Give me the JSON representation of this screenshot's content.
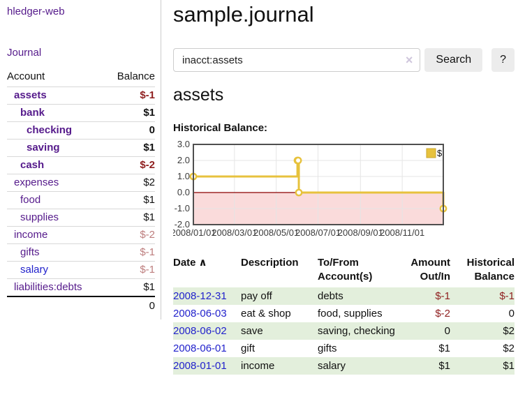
{
  "sidebar": {
    "app_title": "hledger-web",
    "journal_link": "Journal",
    "accounts_header": {
      "account": "Account",
      "balance": "Balance"
    },
    "accounts": [
      {
        "name": "assets",
        "balance": "$-1"
      },
      {
        "name": "bank",
        "balance": "$1"
      },
      {
        "name": "checking",
        "balance": "0"
      },
      {
        "name": "saving",
        "balance": "$1"
      },
      {
        "name": "cash",
        "balance": "$-2"
      },
      {
        "name": "expenses",
        "balance": "$2"
      },
      {
        "name": "food",
        "balance": "$1"
      },
      {
        "name": "supplies",
        "balance": "$1"
      },
      {
        "name": "income",
        "balance": "$-2"
      },
      {
        "name": "gifts",
        "balance": "$-1"
      },
      {
        "name": "salary",
        "balance": "$-1"
      },
      {
        "name": "liabilities:debts",
        "balance": "$1"
      }
    ],
    "total": "0"
  },
  "main": {
    "title": "sample.journal",
    "account_heading": "assets",
    "chart_title": "Historical Balance:"
  },
  "search": {
    "value": "inacct:assets",
    "clear_icon": "×",
    "button_label": "Search",
    "help_label": "?"
  },
  "chart_data": {
    "type": "line",
    "step": true,
    "title": "Historical Balance:",
    "xlabel": "",
    "ylabel": "",
    "x_range": [
      "2008-01-01",
      "2008-12-31"
    ],
    "y_range": [
      -2,
      3
    ],
    "x_ticks": [
      {
        "date": "2008-01-01",
        "label": "2008/01/01"
      },
      {
        "date": "2008-03-01",
        "label": "2008/03/01"
      },
      {
        "date": "2008-05-01",
        "label": "2008/05/01"
      },
      {
        "date": "2008-07-01",
        "label": "2008/07/01"
      },
      {
        "date": "2008-09-01",
        "label": "2008/09/01"
      },
      {
        "date": "2008-11-01",
        "label": "2008/11/01"
      }
    ],
    "y_ticks": [
      {
        "value": 3,
        "label": "3.0"
      },
      {
        "value": 2,
        "label": "2.0"
      },
      {
        "value": 1,
        "label": "1.0"
      },
      {
        "value": 0,
        "label": "0.0"
      },
      {
        "value": -1,
        "label": "-1.0"
      },
      {
        "value": -2,
        "label": "-2.0"
      }
    ],
    "series": [
      {
        "name": "$",
        "color": "#e7c23d",
        "points": [
          {
            "date": "2008-01-01",
            "value": 1
          },
          {
            "date": "2008-06-01",
            "value": 2
          },
          {
            "date": "2008-06-02",
            "value": 2
          },
          {
            "date": "2008-06-03",
            "value": 0
          },
          {
            "date": "2008-12-31",
            "value": -1
          }
        ]
      }
    ],
    "legend": {
      "label": "$",
      "position": "top-right"
    },
    "colors": {
      "grid": "#e5e5e5",
      "border": "#4f4f4f",
      "zero_line": "#8b0000",
      "negative_region": "#fadbdb",
      "marker_fill": "#ffffff"
    }
  },
  "register": {
    "headers": {
      "date": "Date",
      "sort_indicator": "∧",
      "description": "Description",
      "account_line1": "To/From",
      "account_line2": "Account(s)",
      "amount_line1": "Amount",
      "amount_line2": "Out/In",
      "balance_line1": "Historical",
      "balance_line2": "Balance"
    },
    "rows": [
      {
        "date": "2008-12-31",
        "description": "pay off",
        "accounts": "debts",
        "amount": "$-1",
        "balance": "$-1"
      },
      {
        "date": "2008-06-03",
        "description": "eat & shop",
        "accounts": "food, supplies",
        "amount": "$-2",
        "balance": "0"
      },
      {
        "date": "2008-06-02",
        "description": "save",
        "accounts": "saving, checking",
        "amount": "0",
        "balance": "$2"
      },
      {
        "date": "2008-06-01",
        "description": "gift",
        "accounts": "gifts",
        "amount": "$1",
        "balance": "$2"
      },
      {
        "date": "2008-01-01",
        "description": "income",
        "accounts": "salary",
        "amount": "$1",
        "balance": "$1"
      }
    ]
  }
}
